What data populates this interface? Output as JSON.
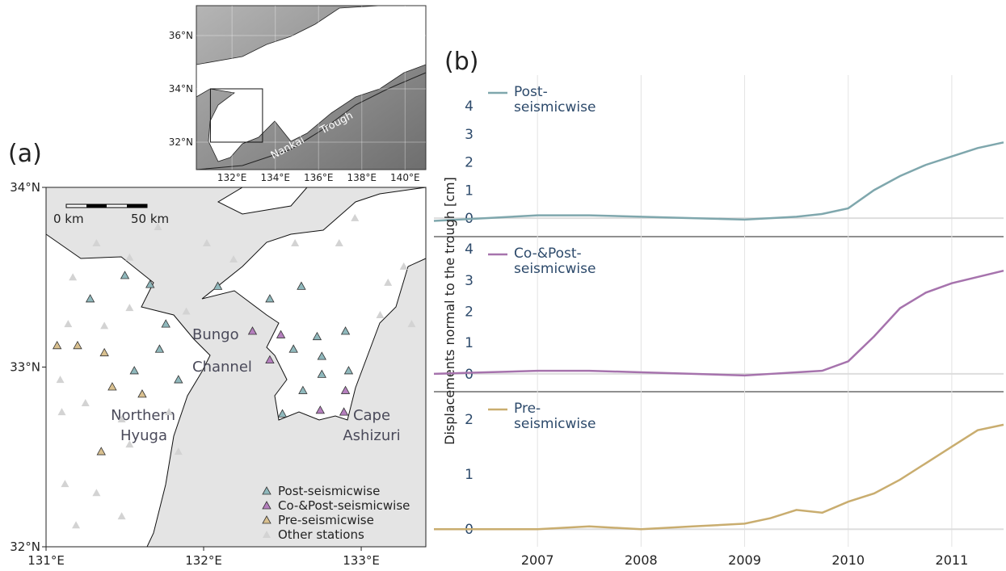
{
  "chart_data": [
    {
      "type": "scatter",
      "panel_label": "(a)",
      "xlim": [
        131,
        133.41
      ],
      "ylim": [
        32,
        34
      ],
      "xticks": [
        {
          "value": 131,
          "label": "131°E"
        },
        {
          "value": 132,
          "label": "132°E"
        },
        {
          "value": 133,
          "label": "133°E"
        }
      ],
      "yticks": [
        {
          "value": 32,
          "label": "32°N"
        },
        {
          "value": 33,
          "label": "33°N"
        },
        {
          "value": 34,
          "label": "34°N"
        }
      ],
      "scale_labels": [
        "0 km",
        "50 km"
      ],
      "annotations": [
        "Bungo",
        "Channel",
        "Northern",
        "Hyuga",
        "Cape",
        "Ashizuri"
      ],
      "legend": "lower right",
      "series": [
        {
          "name": "Post-seismicwise",
          "color": "#8fb8bc",
          "x": [
            131.5,
            131.66,
            131.28,
            131.76,
            131.72,
            131.56,
            131.84,
            132.09,
            132.42,
            132.62,
            132.57,
            132.72,
            132.9,
            132.75,
            132.75,
            132.92,
            132.63,
            132.5
          ],
          "y": [
            33.51,
            33.46,
            33.38,
            33.24,
            33.1,
            32.98,
            32.93,
            33.45,
            33.38,
            33.45,
            33.1,
            33.17,
            33.2,
            33.06,
            32.96,
            32.98,
            32.87,
            32.74
          ]
        },
        {
          "name": "Co-&Post-seismicwise",
          "color": "#b47fbd",
          "x": [
            132.31,
            132.49,
            132.42,
            132.9,
            132.74,
            132.89
          ],
          "y": [
            33.2,
            33.18,
            33.04,
            32.87,
            32.76,
            32.75
          ]
        },
        {
          "name": "Pre-seismicwise",
          "color": "#d9c08f",
          "x": [
            131.07,
            131.2,
            131.37,
            131.42,
            131.61,
            131.35
          ],
          "y": [
            33.12,
            33.12,
            33.08,
            32.89,
            32.85,
            32.53
          ]
        },
        {
          "name": "Other stations",
          "color": "#d3d3d3",
          "x": [
            131.17,
            131.32,
            131.53,
            131.14,
            131.37,
            131.53,
            131.89,
            131.09,
            131.1,
            131.25,
            131.48,
            131.53,
            131.32,
            131.48,
            131.12,
            131.19,
            131.78,
            131.84,
            132.19,
            132.58,
            132.86,
            132.96,
            133.17,
            133.27,
            133.12,
            133.32,
            132.02,
            131.71
          ],
          "y": [
            33.5,
            33.69,
            33.61,
            33.24,
            33.23,
            33.33,
            33.31,
            32.93,
            32.75,
            32.8,
            32.71,
            32.57,
            32.3,
            32.17,
            32.35,
            32.12,
            32.75,
            32.53,
            33.6,
            33.69,
            33.69,
            33.83,
            33.47,
            33.56,
            33.29,
            33.24,
            33.69,
            33.78
          ]
        }
      ]
    },
    {
      "type": "map",
      "xlim": [
        130.35,
        140.96
      ],
      "ylim": [
        30.97,
        37.12
      ],
      "xticks": [
        {
          "value": 132,
          "label": "132°E"
        },
        {
          "value": 134,
          "label": "134°E"
        },
        {
          "value": 136,
          "label": "136°E"
        },
        {
          "value": 138,
          "label": "138°E"
        },
        {
          "value": 140,
          "label": "140°E"
        }
      ],
      "yticks": [
        {
          "value": 32,
          "label": "32°N"
        },
        {
          "value": 34,
          "label": "34°N"
        },
        {
          "value": 36,
          "label": "36°N"
        }
      ],
      "box_x": [
        131,
        133.41
      ],
      "box_y": [
        32,
        34
      ],
      "annotations": [
        "Nankai",
        "Trough"
      ]
    },
    {
      "type": "line",
      "panel_label": "(b)",
      "xlim": [
        2006,
        2011.5
      ],
      "ylim": [
        -0.66,
        5.1
      ],
      "yticks": [
        0,
        1,
        2,
        3,
        4
      ],
      "xticks": [
        2007,
        2008,
        2009,
        2010,
        2011
      ],
      "series": [
        {
          "name": "Post-seismicwise",
          "color": "#7fa7ad",
          "x": [
            2006,
            2006.5,
            2007,
            2007.5,
            2008,
            2008.5,
            2009,
            2009.25,
            2009.5,
            2009.75,
            2010,
            2010.25,
            2010.5,
            2010.75,
            2011,
            2011.25,
            2011.5
          ],
          "values": [
            -0.1,
            0.0,
            0.1,
            0.1,
            0.05,
            0.0,
            -0.05,
            0.0,
            0.05,
            0.15,
            0.35,
            1.0,
            1.5,
            1.9,
            2.2,
            2.5,
            2.7
          ]
        }
      ]
    },
    {
      "type": "line",
      "y_label": "Displacements normal to the trough [cm]",
      "xlim": [
        2006,
        2011.5
      ],
      "ylim": [
        -0.57,
        4.39
      ],
      "yticks": [
        0,
        1,
        2,
        3,
        4
      ],
      "xticks": [
        2007,
        2008,
        2009,
        2010,
        2011
      ],
      "series": [
        {
          "name": "Co-&Post-seismicwise",
          "color": "#a673ad",
          "x": [
            2006,
            2006.5,
            2007,
            2007.5,
            2008,
            2008.5,
            2009,
            2009.25,
            2009.5,
            2009.75,
            2010,
            2010.25,
            2010.5,
            2010.75,
            2011,
            2011.25,
            2011.5
          ],
          "values": [
            0,
            0.05,
            0.1,
            0.1,
            0.05,
            0.0,
            -0.05,
            0.0,
            0.05,
            0.1,
            0.4,
            1.2,
            2.1,
            2.6,
            2.9,
            3.1,
            3.3
          ]
        }
      ]
    },
    {
      "type": "line",
      "xlim": [
        2006,
        2011.5
      ],
      "ylim": [
        -0.32,
        2.5
      ],
      "yticks": [
        0,
        1,
        2
      ],
      "xticks": [
        2007,
        2008,
        2009,
        2010,
        2011
      ],
      "series": [
        {
          "name": "Pre-seismicwise",
          "color": "#c9ad6f",
          "x": [
            2006,
            2006.5,
            2007,
            2007.5,
            2008,
            2008.5,
            2009,
            2009.25,
            2009.5,
            2009.75,
            2010,
            2010.25,
            2010.5,
            2010.75,
            2011,
            2011.25,
            2011.5
          ],
          "values": [
            0,
            0.0,
            0.0,
            0.05,
            0.0,
            0.05,
            0.1,
            0.2,
            0.35,
            0.3,
            0.5,
            0.65,
            0.9,
            1.2,
            1.5,
            1.8,
            1.9
          ]
        }
      ]
    }
  ]
}
